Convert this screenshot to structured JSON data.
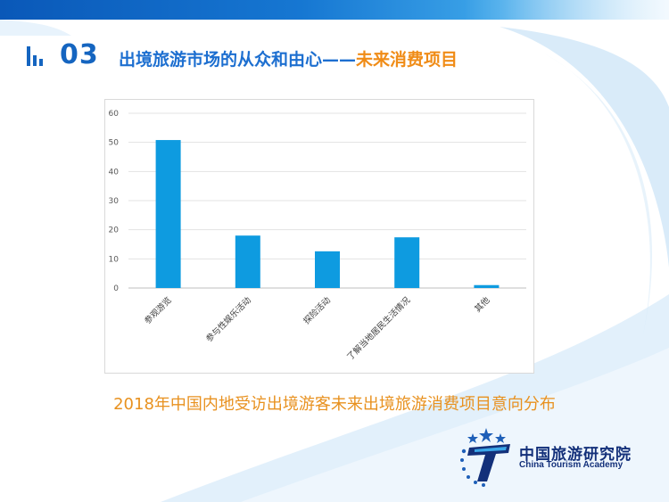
{
  "slide": {
    "section_number": "03",
    "title_main": "出境旅游市场的从众和由心——",
    "title_highlight": "未来消费项目",
    "caption": "2018年中国内地受访出境游客未来出境旅游消费项目意向分布"
  },
  "logo": {
    "name_cn": "中国旅游研究院",
    "name_en": "China Tourism Academy"
  },
  "colors": {
    "brand_blue": "#1565c0",
    "accent_orange": "#f08c17",
    "bar": "#0e9be0"
  },
  "chart_data": {
    "type": "bar",
    "categories": [
      "参观游览",
      "参与性娱乐活动",
      "探险活动",
      "了解当地居民生活情况",
      "其他"
    ],
    "values": [
      50.8,
      18.0,
      12.6,
      17.4,
      1.0
    ],
    "ylim": [
      0,
      60
    ],
    "yticks": [
      0,
      10,
      20,
      30,
      40,
      50,
      60
    ],
    "grid": true
  }
}
